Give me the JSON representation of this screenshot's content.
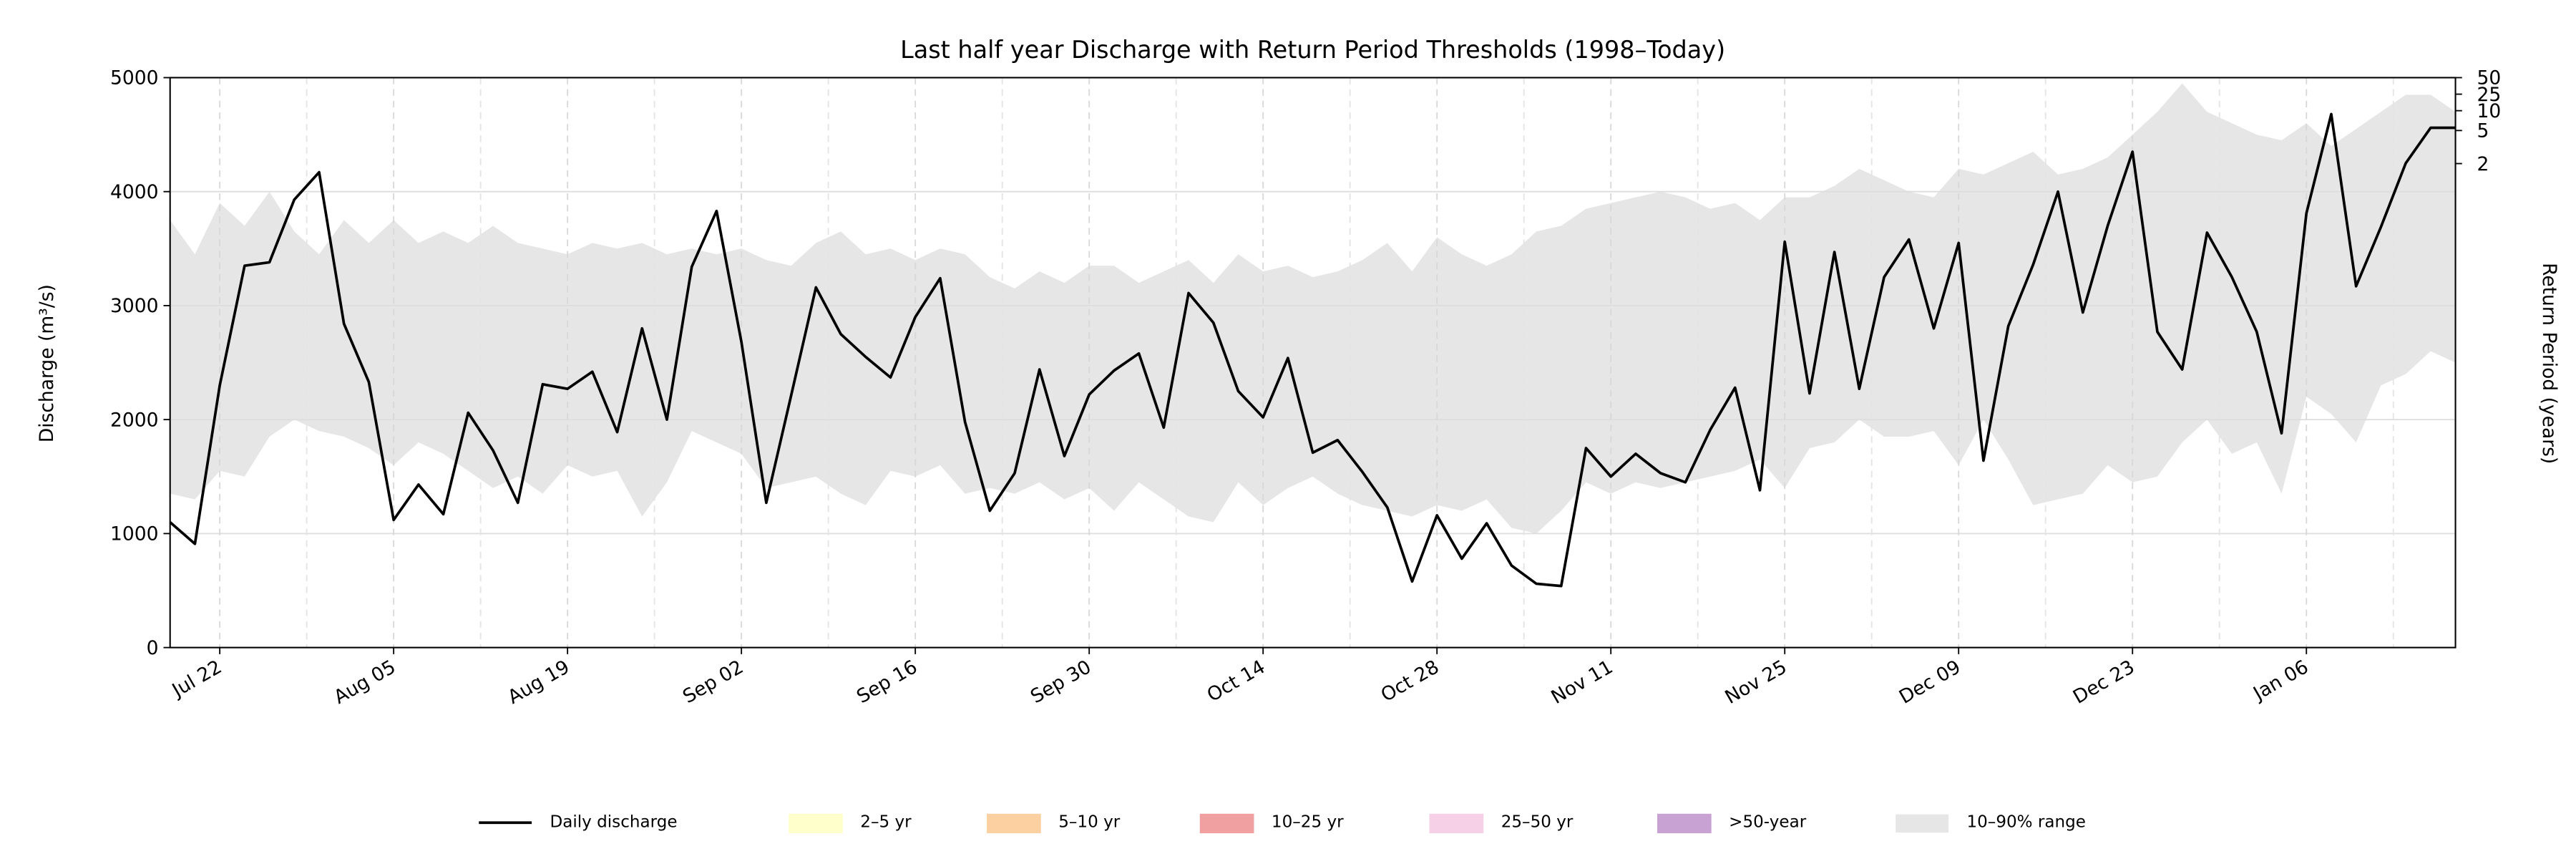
{
  "chart_data": {
    "type": "line",
    "title": "Last half year Discharge with Return Period Thresholds (1998–Today)",
    "ylabel": "Discharge (m³/s)",
    "y2label": "Return Period (years)",
    "categories": [
      null,
      null,
      "Jul 22",
      null,
      null,
      null,
      null,
      null,
      null,
      "Aug 05",
      null,
      null,
      null,
      null,
      null,
      null,
      "Aug 19",
      null,
      null,
      null,
      null,
      null,
      null,
      "Sep 02",
      null,
      null,
      null,
      null,
      null,
      null,
      "Sep 16",
      null,
      null,
      null,
      null,
      null,
      null,
      "Sep 30",
      null,
      null,
      null,
      null,
      null,
      null,
      "Oct 14",
      null,
      null,
      null,
      null,
      null,
      null,
      "Oct 28",
      null,
      null,
      null,
      null,
      null,
      null,
      "Nov 11",
      null,
      null,
      null,
      null,
      null,
      null,
      "Nov 25",
      null,
      null,
      null,
      null,
      null,
      null,
      "Dec 09",
      null,
      null,
      null,
      null,
      null,
      null,
      "Dec 23",
      null,
      null,
      null,
      null,
      null,
      null,
      "Jan 06",
      null,
      null,
      null,
      null,
      null,
      null
    ],
    "series": [
      {
        "name": "Daily discharge",
        "color": "#000000",
        "values": [
          1100,
          910,
          2300,
          3350,
          3380,
          3930,
          4170,
          2840,
          2330,
          1120,
          1430,
          1170,
          2060,
          1730,
          1270,
          2310,
          2270,
          2420,
          1890,
          2800,
          2000,
          3340,
          3830,
          2680,
          1270,
          2210,
          3160,
          2750,
          2550,
          2370,
          2900,
          3240,
          1980,
          1200,
          1530,
          2440,
          1680,
          2220,
          2430,
          2580,
          1930,
          3110,
          2850,
          2250,
          2020,
          2540,
          1710,
          1820,
          1540,
          1230,
          580,
          1160,
          780,
          1090,
          720,
          560,
          540,
          1750,
          1500,
          1700,
          1530,
          1450,
          1910,
          2280,
          1380,
          3560,
          2230,
          3470,
          2270,
          3250,
          3580,
          2800,
          3550,
          1640,
          2820,
          3360,
          4000,
          2940,
          3700,
          4350,
          2770,
          2440,
          3640,
          3250,
          2770,
          1880,
          3810,
          4680,
          3170,
          3690,
          4250,
          4560,
          4560
        ]
      }
    ],
    "range": {
      "name": "10–90% range",
      "color": "#e6e6e6",
      "lower": [
        1350,
        1300,
        1550,
        1500,
        1850,
        2000,
        1900,
        1850,
        1750,
        1600,
        1800,
        1700,
        1550,
        1400,
        1500,
        1350,
        1600,
        1500,
        1550,
        1150,
        1450,
        1900,
        1800,
        1700,
        1400,
        1450,
        1500,
        1350,
        1250,
        1550,
        1500,
        1600,
        1350,
        1400,
        1350,
        1450,
        1300,
        1400,
        1200,
        1450,
        1300,
        1150,
        1100,
        1450,
        1250,
        1400,
        1500,
        1350,
        1250,
        1200,
        1150,
        1250,
        1200,
        1300,
        1050,
        1000,
        1200,
        1450,
        1350,
        1450,
        1400,
        1450,
        1500,
        1550,
        1650,
        1400,
        1750,
        1800,
        2000,
        1850,
        1850,
        1900,
        1600,
        2000,
        1650,
        1250,
        1300,
        1350,
        1600,
        1450,
        1500,
        1800,
        2000,
        1700,
        1800,
        1350,
        2200,
        2050,
        1800,
        2300,
        2400,
        2600,
        2500
      ],
      "upper": [
        3750,
        3450,
        3900,
        3700,
        4000,
        3650,
        3450,
        3750,
        3550,
        3750,
        3550,
        3650,
        3550,
        3700,
        3550,
        3500,
        3450,
        3550,
        3500,
        3550,
        3450,
        3500,
        3450,
        3500,
        3400,
        3350,
        3550,
        3650,
        3450,
        3500,
        3400,
        3500,
        3450,
        3250,
        3150,
        3300,
        3200,
        3350,
        3350,
        3200,
        3300,
        3400,
        3200,
        3450,
        3300,
        3350,
        3250,
        3300,
        3400,
        3550,
        3300,
        3600,
        3450,
        3350,
        3450,
        3650,
        3700,
        3850,
        3900,
        3950,
        4000,
        3950,
        3850,
        3900,
        3750,
        3950,
        3950,
        4050,
        4200,
        4100,
        4000,
        3950,
        4200,
        4150,
        4250,
        4350,
        4150,
        4200,
        4300,
        4500,
        4700,
        4950,
        4700,
        4600,
        4500,
        4450,
        4600,
        4400,
        4550,
        4700,
        4850,
        4850,
        4700
      ]
    },
    "threshold_bands": [
      {
        "name": "2–5 yr",
        "color": "#ffffcc"
      },
      {
        "name": "5–10 yr",
        "color": "#fdd0a2"
      },
      {
        "name": "10–25 yr",
        "color": "#f0a0a0"
      },
      {
        "name": "25–50 yr",
        "color": "#f5d0e6"
      },
      {
        "name": ">50-year",
        "color": "#c8a2d2"
      }
    ],
    "ylim": [
      0,
      5000
    ],
    "yticks": [
      0,
      1000,
      2000,
      3000,
      4000,
      5000
    ],
    "y2ticks": [
      2,
      5,
      10,
      25,
      50
    ],
    "return_period_discharge": [
      4246,
      4536,
      4710,
      4855,
      5000
    ],
    "grid": true,
    "legend": "lower center"
  }
}
